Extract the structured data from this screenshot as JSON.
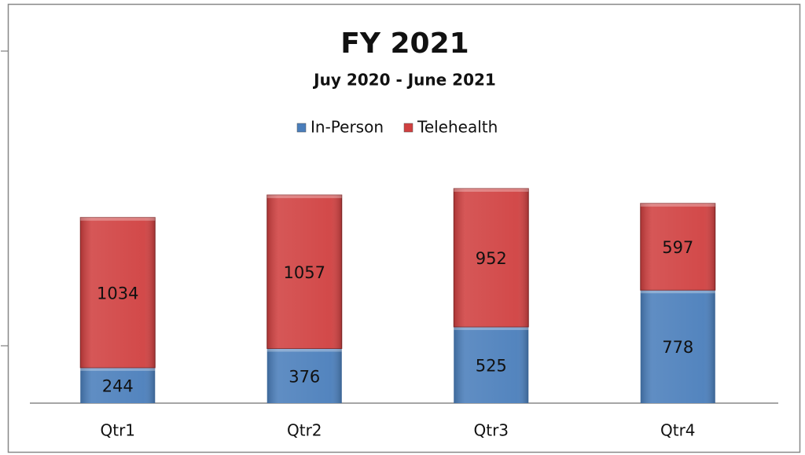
{
  "chart_data": {
    "type": "stacked_bar",
    "title": "FY 2021",
    "subtitle": "Juy 2020 - June 2021",
    "categories": [
      "Qtr1",
      "Qtr2",
      "Qtr3",
      "Qtr4"
    ],
    "series": [
      {
        "name": "In-Person",
        "color": "#4a7ebb",
        "values": [
          244,
          376,
          525,
          778
        ]
      },
      {
        "name": "Telehealth",
        "color": "#d04040",
        "values": [
          1034,
          1057,
          952,
          597
        ]
      }
    ],
    "legend": "top"
  }
}
